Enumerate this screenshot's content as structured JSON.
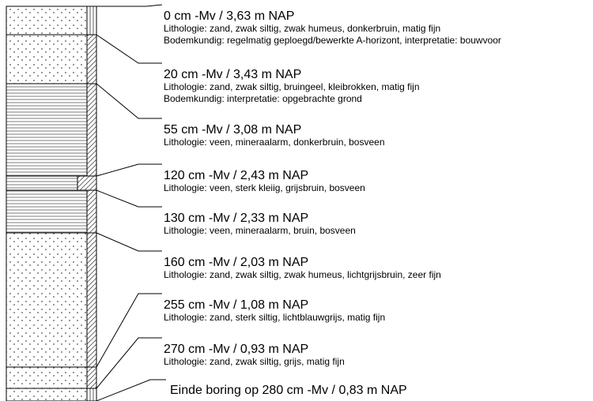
{
  "layers": [
    {
      "title": "0 cm -Mv / 3,63 m NAP",
      "lines": [
        "Lithologie: zand, zwak siltig, zwak humeus, donkerbruin, matig fijn",
        "Bodemkundig: regelmatig geploegd/bewerkte A-horizont, interpretatie: bouwvoor"
      ]
    },
    {
      "title": "20 cm -Mv / 3,43 m NAP",
      "lines": [
        "Lithologie: zand, zwak siltig, bruingeel, kleibrokken, matig fijn",
        "Bodemkundig: interpretatie: opgebrachte grond"
      ]
    },
    {
      "title": "55 cm -Mv / 3,08 m NAP",
      "lines": [
        "Lithologie: veen, mineraalarm, donkerbruin, bosveen"
      ]
    },
    {
      "title": "120 cm -Mv / 2,43 m NAP",
      "lines": [
        "Lithologie: veen, sterk kleiig, grijsbruin, bosveen"
      ]
    },
    {
      "title": "130 cm -Mv / 2,33 m NAP",
      "lines": [
        "Lithologie: veen, mineraalarm, bruin, bosveen"
      ]
    },
    {
      "title": "160 cm -Mv / 2,03 m NAP",
      "lines": [
        "Lithologie: zand, zwak siltig, zwak humeus, lichtgrijsbruin, zeer fijn"
      ]
    },
    {
      "title": "255 cm -Mv / 1,08 m NAP",
      "lines": [
        "Lithologie: zand, sterk siltig, lichtblauwgrijs, matig fijn"
      ]
    },
    {
      "title": "270 cm -Mv / 0,93 m NAP",
      "lines": [
        "Lithologie: zand, zwak siltig, grijs, matig fijn"
      ]
    }
  ],
  "end": "Einde boring op 280 cm -Mv / 0,83 m NAP"
}
